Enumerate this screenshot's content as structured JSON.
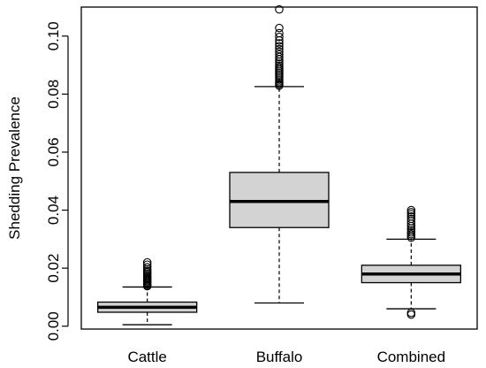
{
  "chart_data": {
    "type": "boxplot",
    "title": "",
    "xlabel": "",
    "ylabel": "Shedding Prevalence",
    "ylim": [
      -0.001,
      0.11
    ],
    "yticks": [
      0.0,
      0.02,
      0.04,
      0.06,
      0.08,
      0.1
    ],
    "ytick_labels": [
      "0.00",
      "0.02",
      "0.04",
      "0.06",
      "0.08",
      "0.10"
    ],
    "categories": [
      "Cattle",
      "Buffalo",
      "Combined"
    ],
    "grid": false,
    "box_fill": "#d3d3d3",
    "series": [
      {
        "category": "Cattle",
        "whisker_low": 0.0005,
        "q1": 0.0048,
        "median": 0.0065,
        "q3": 0.0083,
        "whisker_high": 0.0135,
        "outliers": [
          0.0138,
          0.0142,
          0.0146,
          0.015,
          0.0154,
          0.0158,
          0.0162,
          0.0166,
          0.017,
          0.0175,
          0.018,
          0.0185,
          0.019,
          0.0196,
          0.0203,
          0.0212,
          0.022
        ]
      },
      {
        "category": "Buffalo",
        "whisker_low": 0.008,
        "q1": 0.034,
        "median": 0.043,
        "q3": 0.053,
        "whisker_high": 0.0826,
        "outliers": [
          0.0829,
          0.0834,
          0.0839,
          0.0844,
          0.085,
          0.0856,
          0.0862,
          0.0868,
          0.0874,
          0.088,
          0.0886,
          0.0892,
          0.0898,
          0.0905,
          0.0912,
          0.092,
          0.0928,
          0.0937,
          0.0946,
          0.0955,
          0.0965,
          0.0975,
          0.0985,
          0.0997,
          0.101,
          0.1028,
          0.1092
        ]
      },
      {
        "category": "Combined",
        "whisker_low": 0.006,
        "q1": 0.015,
        "median": 0.018,
        "q3": 0.021,
        "whisker_high": 0.03,
        "outliers": [
          0.0305,
          0.0311,
          0.0317,
          0.0323,
          0.033,
          0.0337,
          0.0345,
          0.0353,
          0.0362,
          0.037,
          0.0378,
          0.0386,
          0.0393,
          0.04,
          0.0046,
          0.004
        ]
      }
    ]
  }
}
